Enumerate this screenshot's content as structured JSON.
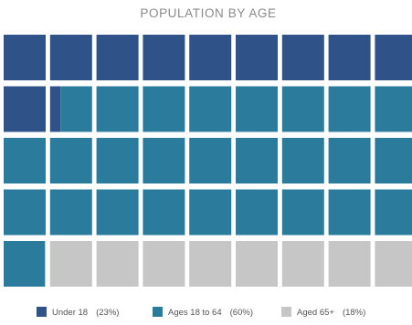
{
  "chart_data": {
    "type": "waffle",
    "title": "POPULATION BY AGE",
    "grid": {
      "rows": 5,
      "cols": 9
    },
    "series": [
      {
        "name": "Under 18",
        "percent_label": "(23%)",
        "value": 23,
        "color": "#2f5289"
      },
      {
        "name": "Ages 18 to 64",
        "percent_label": "(60%)",
        "value": 60,
        "color": "#2b7c9c"
      },
      {
        "name": "Aged 65+",
        "percent_label": "(18%)",
        "value": 18,
        "color": "#c6c6c6"
      }
    ]
  }
}
